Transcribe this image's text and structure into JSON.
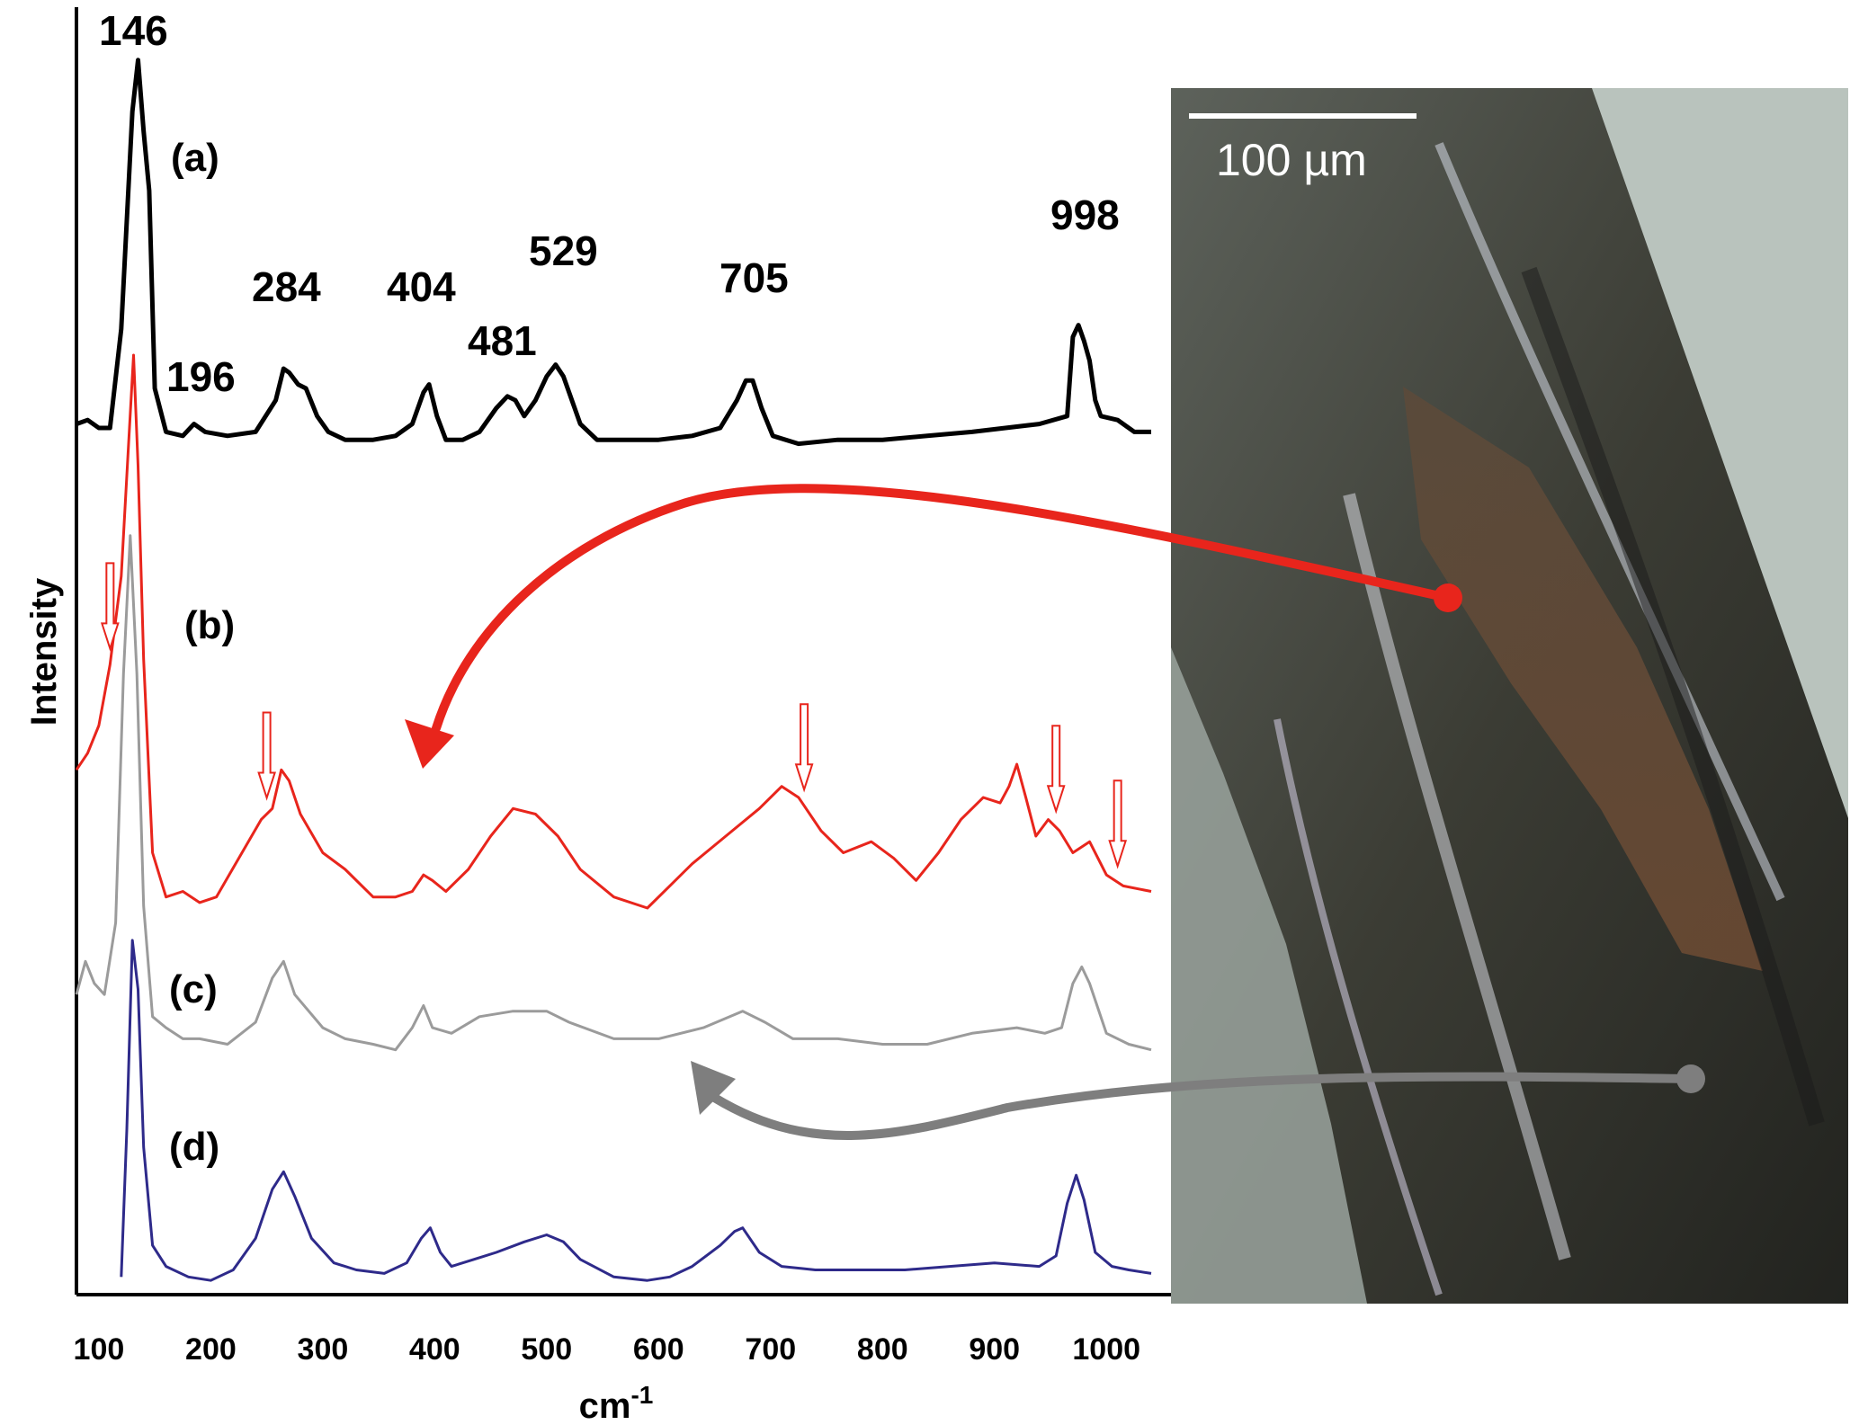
{
  "chart_data": {
    "type": "line",
    "xlabel": "cm",
    "xlabel_superscript": "-1",
    "ylabel": "Intensity",
    "xlim": [
      80,
      1040
    ],
    "x_ticks": [
      100,
      200,
      300,
      400,
      500,
      600,
      700,
      800,
      900,
      1000
    ],
    "series": [
      {
        "name": "(a)",
        "color": "#000000",
        "peak_labels": [
          "146",
          "196",
          "284",
          "404",
          "481",
          "529",
          "705",
          "998"
        ],
        "points": [
          [
            80,
            0.06
          ],
          [
            90,
            0.07
          ],
          [
            100,
            0.05
          ],
          [
            110,
            0.05
          ],
          [
            120,
            0.3
          ],
          [
            130,
            0.85
          ],
          [
            135,
            0.98
          ],
          [
            140,
            0.8
          ],
          [
            145,
            0.65
          ],
          [
            150,
            0.15
          ],
          [
            160,
            0.04
          ],
          [
            175,
            0.03
          ],
          [
            185,
            0.06
          ],
          [
            195,
            0.04
          ],
          [
            215,
            0.03
          ],
          [
            240,
            0.04
          ],
          [
            258,
            0.12
          ],
          [
            265,
            0.2
          ],
          [
            270,
            0.19
          ],
          [
            278,
            0.16
          ],
          [
            285,
            0.15
          ],
          [
            295,
            0.08
          ],
          [
            305,
            0.04
          ],
          [
            320,
            0.02
          ],
          [
            345,
            0.02
          ],
          [
            365,
            0.03
          ],
          [
            380,
            0.06
          ],
          [
            390,
            0.14
          ],
          [
            395,
            0.16
          ],
          [
            402,
            0.08
          ],
          [
            410,
            0.02
          ],
          [
            425,
            0.02
          ],
          [
            440,
            0.04
          ],
          [
            455,
            0.1
          ],
          [
            465,
            0.13
          ],
          [
            472,
            0.12
          ],
          [
            480,
            0.08
          ],
          [
            490,
            0.12
          ],
          [
            500,
            0.18
          ],
          [
            508,
            0.21
          ],
          [
            515,
            0.18
          ],
          [
            530,
            0.06
          ],
          [
            545,
            0.02
          ],
          [
            570,
            0.02
          ],
          [
            600,
            0.02
          ],
          [
            630,
            0.03
          ],
          [
            655,
            0.05
          ],
          [
            670,
            0.12
          ],
          [
            678,
            0.17
          ],
          [
            684,
            0.17
          ],
          [
            692,
            0.1
          ],
          [
            702,
            0.03
          ],
          [
            725,
            0.01
          ],
          [
            760,
            0.02
          ],
          [
            800,
            0.02
          ],
          [
            840,
            0.03
          ],
          [
            880,
            0.04
          ],
          [
            940,
            0.06
          ],
          [
            965,
            0.08
          ],
          [
            970,
            0.28
          ],
          [
            975,
            0.31
          ],
          [
            980,
            0.27
          ],
          [
            985,
            0.22
          ],
          [
            990,
            0.12
          ],
          [
            995,
            0.08
          ],
          [
            1010,
            0.07
          ],
          [
            1025,
            0.04
          ],
          [
            1040,
            0.04
          ]
        ]
      },
      {
        "name": "(b)",
        "color": "#e8251c",
        "points": [
          [
            80,
            0.25
          ],
          [
            90,
            0.28
          ],
          [
            100,
            0.33
          ],
          [
            110,
            0.44
          ],
          [
            120,
            0.6
          ],
          [
            126,
            0.82
          ],
          [
            131,
            1.0
          ],
          [
            135,
            0.8
          ],
          [
            140,
            0.45
          ],
          [
            148,
            0.1
          ],
          [
            160,
            0.02
          ],
          [
            175,
            0.03
          ],
          [
            190,
            0.01
          ],
          [
            205,
            0.02
          ],
          [
            225,
            0.09
          ],
          [
            245,
            0.16
          ],
          [
            255,
            0.18
          ],
          [
            263,
            0.25
          ],
          [
            270,
            0.23
          ],
          [
            280,
            0.17
          ],
          [
            300,
            0.1
          ],
          [
            320,
            0.07
          ],
          [
            345,
            0.02
          ],
          [
            365,
            0.02
          ],
          [
            380,
            0.03
          ],
          [
            390,
            0.06
          ],
          [
            398,
            0.05
          ],
          [
            410,
            0.03
          ],
          [
            430,
            0.07
          ],
          [
            450,
            0.13
          ],
          [
            470,
            0.18
          ],
          [
            490,
            0.17
          ],
          [
            510,
            0.13
          ],
          [
            530,
            0.07
          ],
          [
            560,
            0.02
          ],
          [
            590,
            0.0
          ],
          [
            610,
            0.04
          ],
          [
            630,
            0.08
          ],
          [
            660,
            0.13
          ],
          [
            690,
            0.18
          ],
          [
            710,
            0.22
          ],
          [
            725,
            0.2
          ],
          [
            745,
            0.14
          ],
          [
            765,
            0.1
          ],
          [
            790,
            0.12
          ],
          [
            810,
            0.09
          ],
          [
            830,
            0.05
          ],
          [
            850,
            0.1
          ],
          [
            870,
            0.16
          ],
          [
            890,
            0.2
          ],
          [
            905,
            0.19
          ],
          [
            913,
            0.22
          ],
          [
            920,
            0.26
          ],
          [
            928,
            0.2
          ],
          [
            937,
            0.13
          ],
          [
            948,
            0.16
          ],
          [
            958,
            0.14
          ],
          [
            970,
            0.1
          ],
          [
            985,
            0.12
          ],
          [
            1000,
            0.06
          ],
          [
            1015,
            0.04
          ],
          [
            1040,
            0.03
          ]
        ]
      },
      {
        "name": "(c)",
        "color": "#9b9b9b",
        "points": [
          [
            80,
            0.12
          ],
          [
            88,
            0.18
          ],
          [
            96,
            0.14
          ],
          [
            105,
            0.12
          ],
          [
            115,
            0.25
          ],
          [
            122,
            0.7
          ],
          [
            128,
            0.95
          ],
          [
            134,
            0.7
          ],
          [
            140,
            0.28
          ],
          [
            148,
            0.08
          ],
          [
            160,
            0.06
          ],
          [
            175,
            0.04
          ],
          [
            190,
            0.04
          ],
          [
            215,
            0.03
          ],
          [
            240,
            0.07
          ],
          [
            255,
            0.15
          ],
          [
            265,
            0.18
          ],
          [
            275,
            0.12
          ],
          [
            300,
            0.06
          ],
          [
            320,
            0.04
          ],
          [
            345,
            0.03
          ],
          [
            365,
            0.02
          ],
          [
            380,
            0.06
          ],
          [
            390,
            0.1
          ],
          [
            398,
            0.06
          ],
          [
            415,
            0.05
          ],
          [
            440,
            0.08
          ],
          [
            470,
            0.09
          ],
          [
            500,
            0.09
          ],
          [
            520,
            0.07
          ],
          [
            560,
            0.04
          ],
          [
            600,
            0.04
          ],
          [
            640,
            0.06
          ],
          [
            675,
            0.09
          ],
          [
            695,
            0.07
          ],
          [
            720,
            0.04
          ],
          [
            760,
            0.04
          ],
          [
            800,
            0.03
          ],
          [
            840,
            0.03
          ],
          [
            880,
            0.05
          ],
          [
            920,
            0.06
          ],
          [
            945,
            0.05
          ],
          [
            960,
            0.06
          ],
          [
            970,
            0.14
          ],
          [
            978,
            0.17
          ],
          [
            985,
            0.14
          ],
          [
            1000,
            0.05
          ],
          [
            1020,
            0.03
          ],
          [
            1040,
            0.02
          ]
        ]
      },
      {
        "name": "(d)",
        "color": "#2e2a8a",
        "points": [
          [
            120,
            0.03
          ],
          [
            125,
            0.45
          ],
          [
            130,
            0.99
          ],
          [
            135,
            0.85
          ],
          [
            140,
            0.4
          ],
          [
            148,
            0.12
          ],
          [
            160,
            0.06
          ],
          [
            180,
            0.03
          ],
          [
            200,
            0.02
          ],
          [
            220,
            0.05
          ],
          [
            240,
            0.14
          ],
          [
            255,
            0.28
          ],
          [
            265,
            0.33
          ],
          [
            275,
            0.26
          ],
          [
            290,
            0.14
          ],
          [
            310,
            0.07
          ],
          [
            330,
            0.05
          ],
          [
            355,
            0.04
          ],
          [
            375,
            0.07
          ],
          [
            388,
            0.14
          ],
          [
            396,
            0.17
          ],
          [
            405,
            0.1
          ],
          [
            415,
            0.06
          ],
          [
            435,
            0.08
          ],
          [
            455,
            0.1
          ],
          [
            480,
            0.13
          ],
          [
            500,
            0.15
          ],
          [
            515,
            0.13
          ],
          [
            530,
            0.08
          ],
          [
            560,
            0.03
          ],
          [
            590,
            0.02
          ],
          [
            610,
            0.03
          ],
          [
            630,
            0.06
          ],
          [
            655,
            0.12
          ],
          [
            668,
            0.16
          ],
          [
            675,
            0.17
          ],
          [
            690,
            0.1
          ],
          [
            710,
            0.06
          ],
          [
            740,
            0.05
          ],
          [
            780,
            0.05
          ],
          [
            820,
            0.05
          ],
          [
            860,
            0.06
          ],
          [
            900,
            0.07
          ],
          [
            940,
            0.06
          ],
          [
            955,
            0.09
          ],
          [
            965,
            0.24
          ],
          [
            973,
            0.32
          ],
          [
            980,
            0.25
          ],
          [
            990,
            0.1
          ],
          [
            1005,
            0.06
          ],
          [
            1020,
            0.05
          ],
          [
            1040,
            0.04
          ]
        ]
      }
    ],
    "arrow_markers": {
      "series": "(b)",
      "x": [
        110,
        250,
        730,
        955,
        1010
      ]
    },
    "inset_photo": {
      "scale_bar_label": "100 µm"
    },
    "grid": false,
    "legend": "none"
  }
}
